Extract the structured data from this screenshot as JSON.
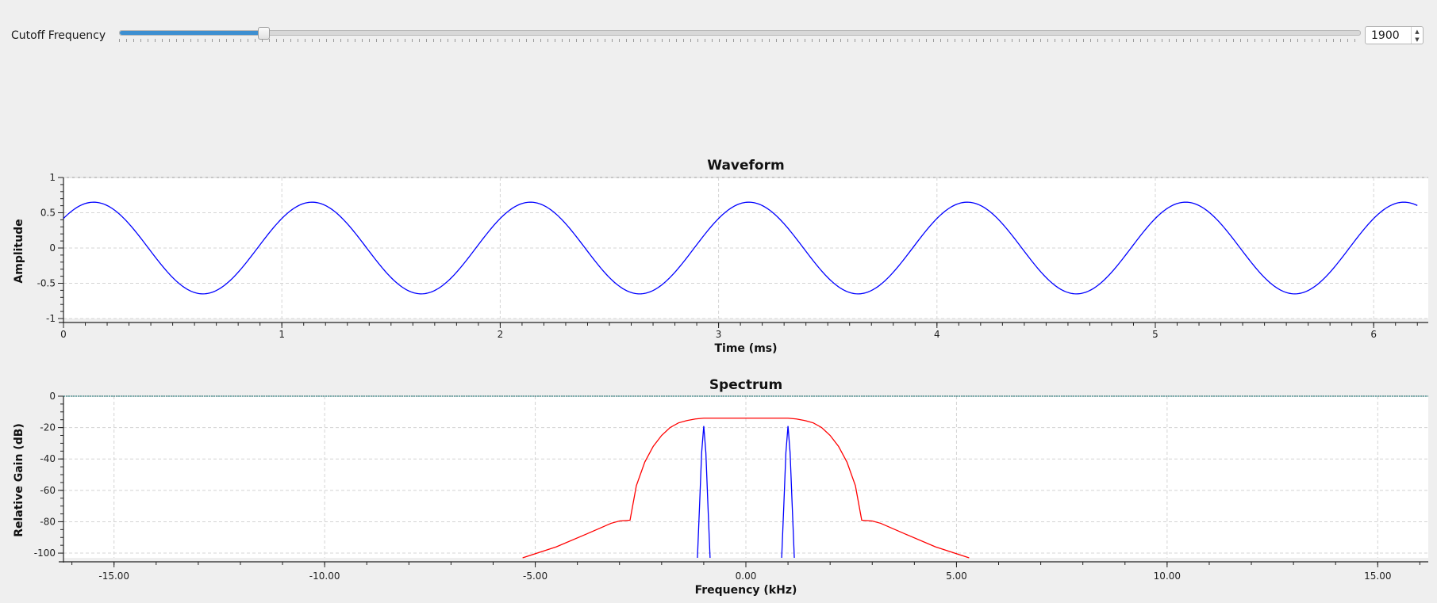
{
  "cutoff": {
    "label": "Cutoff Frequency",
    "value": "1900",
    "slider_fraction": 0.116
  },
  "chart_data": [
    {
      "type": "line",
      "title": "Waveform",
      "xlabel": "Time (ms)",
      "ylabel": "Amplitude",
      "xlim": [
        0,
        6.25
      ],
      "ylim": [
        -1,
        1
      ],
      "x_ticks": [
        "0",
        "1",
        "2",
        "3",
        "4",
        "5",
        "6"
      ],
      "y_ticks": [
        "1",
        "0.5",
        "0",
        "-0.5",
        "-1"
      ],
      "grid": true,
      "series": [
        {
          "color": "#0000ff",
          "function": "sine",
          "amplitude": 0.65,
          "frequency_khz": 1.0,
          "phase_rad": 0.7,
          "x_range": [
            0,
            6.2
          ]
        }
      ]
    },
    {
      "type": "line",
      "title": "Spectrum",
      "xlabel": "Frequency (kHz)",
      "ylabel": "Relative Gain (dB)",
      "xlim": [
        -16.2,
        16.2
      ],
      "ylim": [
        -103,
        0
      ],
      "x_ticks": [
        "-15.00",
        "-10.00",
        "-5.00",
        "0.00",
        "5.00",
        "10.00",
        "15.00"
      ],
      "y_ticks": [
        "0",
        "-20",
        "-40",
        "-60",
        "-80",
        "-100"
      ],
      "grid": true,
      "series": [
        {
          "color": "#ff0000",
          "x": [
            -5.3,
            -4.5,
            -3.8,
            -3.2,
            -3.0,
            -2.75,
            -2.6,
            -2.4,
            -2.2,
            -2.0,
            -1.8,
            -1.6,
            -1.4,
            -1.2,
            -1.0,
            0.0,
            1.0,
            1.2,
            1.4,
            1.6,
            1.8,
            2.0,
            2.2,
            2.4,
            2.6,
            2.75,
            3.0,
            3.2,
            3.8,
            4.5,
            5.3
          ],
          "y": [
            -103,
            -96,
            -88,
            -81,
            -79.5,
            -79,
            -57,
            -42,
            -32,
            -25,
            -20,
            -17,
            -15.5,
            -14.5,
            -14,
            -14,
            -14,
            -14.5,
            -15.5,
            -17,
            -20,
            -25,
            -32,
            -42,
            -57,
            -79,
            -79.5,
            -81,
            -88,
            -96,
            -103
          ]
        },
        {
          "color": "#0000ff",
          "x": [
            -1.15,
            -1.1,
            -1.05,
            -1.0,
            -0.95,
            -0.9,
            -0.85
          ],
          "y": [
            -103,
            -70,
            -36,
            -19,
            -36,
            -70,
            -103
          ]
        },
        {
          "color": "#0000ff",
          "x": [
            0.85,
            0.9,
            0.95,
            1.0,
            1.05,
            1.1,
            1.15
          ],
          "y": [
            -103,
            -70,
            -36,
            -19,
            -36,
            -70,
            -103
          ]
        },
        {
          "color": "#006060",
          "dashed": true,
          "x": [
            -16.2,
            16.2
          ],
          "y": [
            0,
            0
          ]
        }
      ]
    }
  ]
}
